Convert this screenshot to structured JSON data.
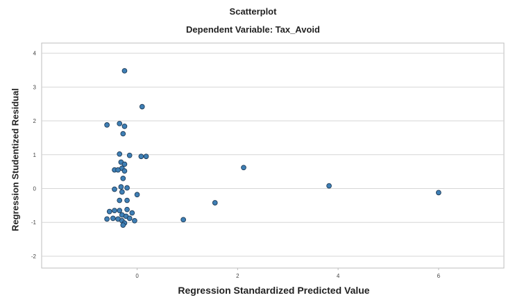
{
  "chart_data": {
    "type": "scatter",
    "title": "Scatterplot",
    "subtitle": "Dependent Variable: Tax_Avoid",
    "xlabel": "Regression Standardized Predicted Value",
    "ylabel": "Regression Studentized Residual",
    "xlim": [
      -1.9,
      7.3
    ],
    "ylim": [
      -2.35,
      4.3
    ],
    "xticks": [
      0,
      2,
      4,
      6
    ],
    "yticks": [
      -2,
      -1,
      0,
      1,
      2,
      3,
      4
    ],
    "grid": "horizontal",
    "points": [
      [
        -0.25,
        3.48
      ],
      [
        0.1,
        2.42
      ],
      [
        -0.6,
        1.88
      ],
      [
        -0.35,
        1.92
      ],
      [
        -0.25,
        1.84
      ],
      [
        -0.28,
        1.62
      ],
      [
        -0.35,
        1.02
      ],
      [
        -0.15,
        0.98
      ],
      [
        0.08,
        0.95
      ],
      [
        0.18,
        0.95
      ],
      [
        -0.32,
        0.78
      ],
      [
        -0.25,
        0.72
      ],
      [
        -0.3,
        0.6
      ],
      [
        -0.45,
        0.55
      ],
      [
        -0.38,
        0.55
      ],
      [
        -0.25,
        0.52
      ],
      [
        -0.28,
        0.3
      ],
      [
        -0.32,
        0.05
      ],
      [
        -0.45,
        -0.02
      ],
      [
        -0.2,
        0.02
      ],
      [
        -0.3,
        -0.1
      ],
      [
        0.0,
        -0.18
      ],
      [
        -0.35,
        -0.35
      ],
      [
        -0.2,
        -0.35
      ],
      [
        -0.55,
        -0.68
      ],
      [
        -0.45,
        -0.65
      ],
      [
        -0.35,
        -0.65
      ],
      [
        -0.2,
        -0.62
      ],
      [
        -0.1,
        -0.72
      ],
      [
        -0.3,
        -0.78
      ],
      [
        -0.22,
        -0.82
      ],
      [
        -0.6,
        -0.9
      ],
      [
        -0.48,
        -0.88
      ],
      [
        -0.38,
        -0.9
      ],
      [
        -0.15,
        -0.88
      ],
      [
        -0.05,
        -0.95
      ],
      [
        -0.3,
        -0.95
      ],
      [
        -0.25,
        -1.02
      ],
      [
        -0.28,
        -1.08
      ],
      [
        2.12,
        0.62
      ],
      [
        1.55,
        -0.42
      ],
      [
        0.92,
        -0.92
      ],
      [
        3.82,
        0.08
      ],
      [
        6.0,
        -0.12
      ]
    ]
  }
}
